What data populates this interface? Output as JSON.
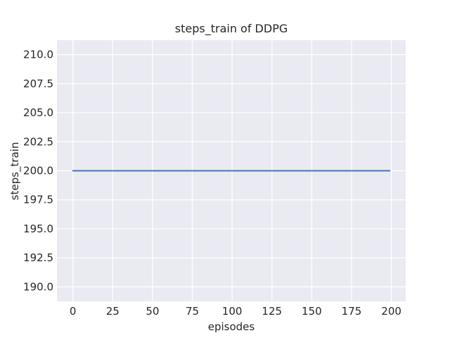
{
  "chart_data": {
    "type": "line",
    "title": "steps_train of DDPG",
    "xlabel": "episodes",
    "ylabel": "steps_train",
    "xlim": [
      -10,
      209
    ],
    "ylim": [
      188.75,
      211.25
    ],
    "xticks": [
      0,
      25,
      50,
      75,
      100,
      125,
      150,
      175,
      200
    ],
    "xtick_labels": [
      "0",
      "25",
      "50",
      "75",
      "100",
      "125",
      "150",
      "175",
      "200"
    ],
    "yticks": [
      190.0,
      192.5,
      195.0,
      197.5,
      200.0,
      202.5,
      205.0,
      207.5,
      210.0
    ],
    "ytick_labels": [
      "190.0",
      "192.5",
      "195.0",
      "197.5",
      "200.0",
      "202.5",
      "205.0",
      "207.5",
      "210.0"
    ],
    "grid": true,
    "legend": "none",
    "series": [
      {
        "name": "steps_train",
        "color": "#4c72b0",
        "x": [
          0,
          199
        ],
        "y": [
          200,
          200
        ]
      }
    ],
    "style": {
      "figure_bg": "#ffffff",
      "axes_bg": "#eaeaf2",
      "grid_color": "#ffffff",
      "text_color": "#262626",
      "line_width": 2
    }
  }
}
